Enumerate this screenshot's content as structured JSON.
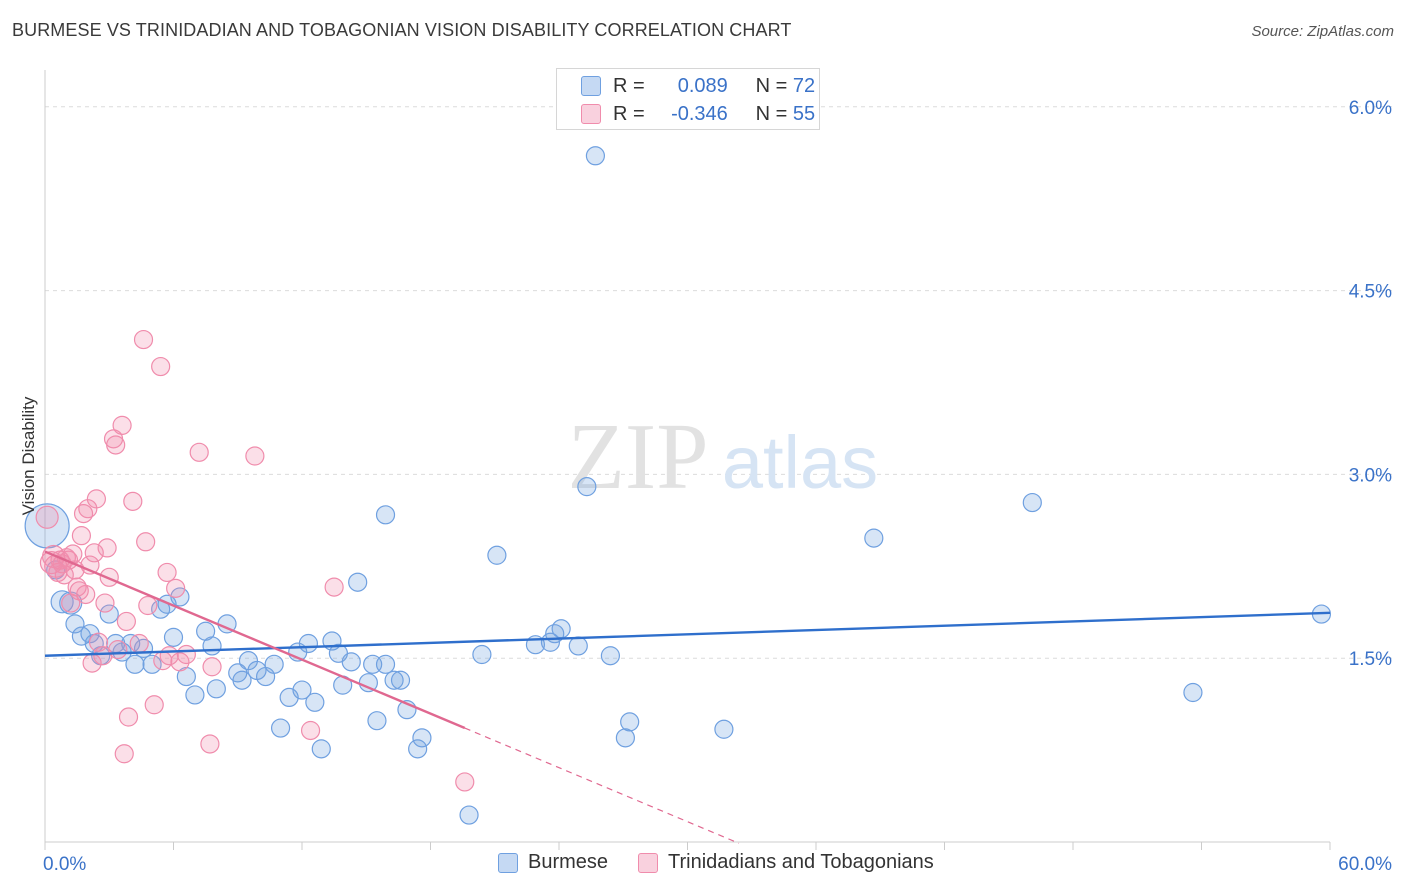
{
  "title": "BURMESE VS TRINIDADIAN AND TOBAGONIAN VISION DISABILITY CORRELATION CHART",
  "source": "Source: ZipAtlas.com",
  "watermark": {
    "zip": "ZIP",
    "atlas": "atlas"
  },
  "legend": {
    "r_label": "R =",
    "n_label": "N =",
    "series": [
      {
        "name": "Burmese",
        "r": "0.089",
        "n": "72",
        "color": "#6fa0e0"
      },
      {
        "name": "Trinidadians and Tobagonians",
        "r": "-0.346",
        "n": "55",
        "color": "#f08cac"
      }
    ]
  },
  "chart_data": {
    "type": "scatter",
    "title": "BURMESE VS TRINIDADIAN AND TOBAGONIAN VISION DISABILITY CORRELATION CHART",
    "xlabel": "",
    "ylabel": "Vision Disability",
    "xlim": [
      0,
      60
    ],
    "ylim": [
      0,
      6.3
    ],
    "x_tick_labels": [
      "0.0%",
      "60.0%"
    ],
    "y_ticks": [
      1.5,
      3.0,
      4.5,
      6.0
    ],
    "y_tick_labels": [
      "1.5%",
      "3.0%",
      "4.5%",
      "6.0%"
    ],
    "grid": true,
    "series": [
      {
        "name": "Burmese",
        "color": "#6fa0e0",
        "line_color": "#2f6fcc",
        "trend": {
          "x0": 0,
          "y0": 1.52,
          "x1": 60,
          "y1": 1.87
        },
        "points": [
          [
            0.1,
            2.58
          ],
          [
            0.5,
            2.22
          ],
          [
            0.8,
            1.96
          ],
          [
            1.2,
            1.95
          ],
          [
            1.4,
            1.78
          ],
          [
            1.7,
            1.68
          ],
          [
            2.1,
            1.7
          ],
          [
            2.3,
            1.62
          ],
          [
            2.6,
            1.52
          ],
          [
            3.0,
            1.86
          ],
          [
            3.3,
            1.62
          ],
          [
            3.6,
            1.55
          ],
          [
            4.0,
            1.62
          ],
          [
            4.2,
            1.45
          ],
          [
            4.6,
            1.58
          ],
          [
            5.0,
            1.45
          ],
          [
            5.4,
            1.9
          ],
          [
            5.7,
            1.94
          ],
          [
            6.0,
            1.67
          ],
          [
            6.3,
            2.0
          ],
          [
            6.6,
            1.35
          ],
          [
            7.0,
            1.2
          ],
          [
            7.5,
            1.72
          ],
          [
            7.8,
            1.6
          ],
          [
            8.0,
            1.25
          ],
          [
            8.5,
            1.78
          ],
          [
            9.0,
            1.38
          ],
          [
            9.2,
            1.32
          ],
          [
            9.5,
            1.48
          ],
          [
            9.9,
            1.4
          ],
          [
            10.3,
            1.35
          ],
          [
            10.7,
            1.45
          ],
          [
            11.0,
            0.93
          ],
          [
            11.4,
            1.18
          ],
          [
            11.8,
            1.55
          ],
          [
            12.0,
            1.24
          ],
          [
            12.3,
            1.62
          ],
          [
            12.6,
            1.14
          ],
          [
            12.9,
            0.76
          ],
          [
            13.4,
            1.64
          ],
          [
            13.7,
            1.54
          ],
          [
            13.9,
            1.28
          ],
          [
            14.3,
            1.47
          ],
          [
            14.6,
            2.12
          ],
          [
            15.1,
            1.3
          ],
          [
            15.3,
            1.45
          ],
          [
            15.5,
            0.99
          ],
          [
            15.9,
            2.67
          ],
          [
            15.9,
            1.45
          ],
          [
            16.3,
            1.32
          ],
          [
            16.6,
            1.32
          ],
          [
            16.9,
            1.08
          ],
          [
            17.4,
            0.76
          ],
          [
            17.6,
            0.85
          ],
          [
            19.8,
            0.22
          ],
          [
            20.4,
            1.53
          ],
          [
            21.1,
            2.34
          ],
          [
            22.9,
            1.61
          ],
          [
            23.6,
            1.63
          ],
          [
            23.8,
            1.7
          ],
          [
            24.1,
            1.74
          ],
          [
            24.9,
            1.6
          ],
          [
            25.3,
            2.9
          ],
          [
            25.7,
            5.6
          ],
          [
            26.4,
            1.52
          ],
          [
            27.1,
            0.85
          ],
          [
            27.3,
            0.98
          ],
          [
            31.7,
            0.92
          ],
          [
            38.7,
            2.48
          ],
          [
            46.1,
            2.77
          ],
          [
            53.6,
            1.22
          ],
          [
            59.6,
            1.86
          ]
        ]
      },
      {
        "name": "Trinidadians and Tobagonians",
        "color": "#f08cac",
        "line_color": "#e06890",
        "trend": {
          "x0": 0,
          "y0": 2.37,
          "x1": 19.6,
          "y1": 0.93,
          "dash_to_x": 32.4
        },
        "points": [
          [
            0.1,
            2.65
          ],
          [
            0.3,
            2.28
          ],
          [
            0.4,
            2.33
          ],
          [
            0.5,
            2.25
          ],
          [
            0.6,
            2.2
          ],
          [
            0.7,
            2.3
          ],
          [
            0.8,
            2.27
          ],
          [
            0.9,
            2.18
          ],
          [
            1.0,
            2.32
          ],
          [
            1.1,
            2.3
          ],
          [
            1.2,
            1.95
          ],
          [
            1.3,
            2.35
          ],
          [
            1.4,
            2.22
          ],
          [
            1.5,
            2.08
          ],
          [
            1.6,
            2.05
          ],
          [
            1.7,
            2.5
          ],
          [
            1.8,
            2.68
          ],
          [
            1.9,
            2.02
          ],
          [
            2.0,
            2.72
          ],
          [
            2.1,
            2.26
          ],
          [
            2.2,
            1.46
          ],
          [
            2.3,
            2.36
          ],
          [
            2.4,
            2.8
          ],
          [
            2.5,
            1.63
          ],
          [
            2.7,
            1.52
          ],
          [
            2.8,
            1.95
          ],
          [
            2.9,
            2.4
          ],
          [
            3.0,
            2.16
          ],
          [
            3.2,
            3.29
          ],
          [
            3.3,
            3.24
          ],
          [
            3.4,
            1.57
          ],
          [
            3.6,
            3.4
          ],
          [
            3.7,
            0.72
          ],
          [
            3.8,
            1.8
          ],
          [
            3.9,
            1.02
          ],
          [
            4.1,
            2.78
          ],
          [
            4.4,
            1.62
          ],
          [
            4.6,
            4.1
          ],
          [
            4.7,
            2.45
          ],
          [
            4.8,
            1.93
          ],
          [
            5.1,
            1.12
          ],
          [
            5.4,
            3.88
          ],
          [
            5.5,
            1.48
          ],
          [
            5.7,
            2.2
          ],
          [
            5.8,
            1.52
          ],
          [
            6.1,
            2.07
          ],
          [
            6.3,
            1.47
          ],
          [
            6.6,
            1.53
          ],
          [
            7.2,
            3.18
          ],
          [
            7.7,
            0.8
          ],
          [
            7.8,
            1.43
          ],
          [
            9.8,
            3.15
          ],
          [
            12.4,
            0.91
          ],
          [
            13.5,
            2.08
          ],
          [
            19.6,
            0.49
          ]
        ]
      }
    ]
  }
}
